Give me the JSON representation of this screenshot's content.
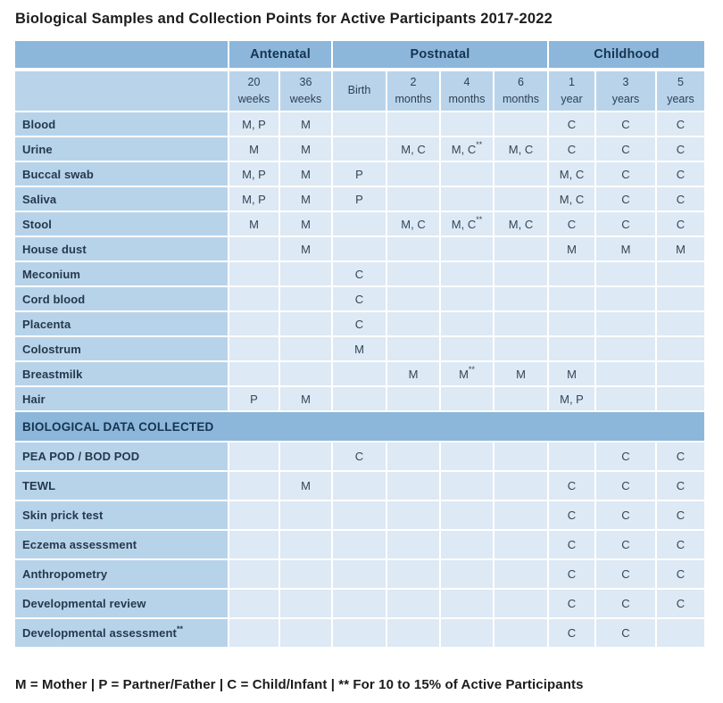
{
  "chart_data": {
    "type": "table",
    "title": "Biological Samples and Collection Points for Active Participants 2017-2022",
    "column_groups": [
      {
        "label": "",
        "span": 1
      },
      {
        "label": "Antenatal",
        "span": 2
      },
      {
        "label": "Postnatal",
        "span": 4
      },
      {
        "label": "Childhood",
        "span": 3
      }
    ],
    "columns": [
      "20\nweeks",
      "36\nweeks",
      "Birth",
      "2\nmonths",
      "4\nmonths",
      "6\nmonths",
      "1\nyear",
      "3\nyears",
      "5\nyears"
    ],
    "sections": [
      {
        "header": "",
        "rows": [
          {
            "label": "Blood",
            "cells": [
              "M, P",
              "M",
              "",
              "",
              "",
              "",
              "C",
              "C",
              "C"
            ]
          },
          {
            "label": "Urine",
            "cells": [
              "M",
              "M",
              "",
              "M, C",
              "M, C**",
              "M, C",
              "C",
              "C",
              "C"
            ]
          },
          {
            "label": "Buccal swab",
            "cells": [
              "M, P",
              "M",
              "P",
              "",
              "",
              "",
              "M, C",
              "C",
              "C"
            ]
          },
          {
            "label": "Saliva",
            "cells": [
              "M, P",
              "M",
              "P",
              "",
              "",
              "",
              "M, C",
              "C",
              "C"
            ]
          },
          {
            "label": "Stool",
            "cells": [
              "M",
              "M",
              "",
              "M, C",
              "M, C**",
              "M, C",
              "C",
              "C",
              "C"
            ]
          },
          {
            "label": "House dust",
            "cells": [
              "",
              "M",
              "",
              "",
              "",
              "",
              "M",
              "M",
              "M"
            ]
          },
          {
            "label": "Meconium",
            "cells": [
              "",
              "",
              "C",
              "",
              "",
              "",
              "",
              "",
              ""
            ]
          },
          {
            "label": "Cord blood",
            "cells": [
              "",
              "",
              "C",
              "",
              "",
              "",
              "",
              "",
              ""
            ]
          },
          {
            "label": "Placenta",
            "cells": [
              "",
              "",
              "C",
              "",
              "",
              "",
              "",
              "",
              ""
            ]
          },
          {
            "label": "Colostrum",
            "cells": [
              "",
              "",
              "M",
              "",
              "",
              "",
              "",
              "",
              ""
            ]
          },
          {
            "label": "Breastmilk",
            "cells": [
              "",
              "",
              "",
              "M",
              "M**",
              "M",
              "M",
              "",
              ""
            ]
          },
          {
            "label": "Hair",
            "cells": [
              "P",
              "M",
              "",
              "",
              "",
              "",
              "M, P",
              "",
              ""
            ]
          }
        ]
      },
      {
        "header": "BIOLOGICAL DATA COLLECTED",
        "rows": [
          {
            "label": "PEA POD / BOD POD",
            "cells": [
              "",
              "",
              "C",
              "",
              "",
              "",
              "",
              "C",
              "C"
            ]
          },
          {
            "label": "TEWL",
            "cells": [
              "",
              "M",
              "",
              "",
              "",
              "",
              "C",
              "C",
              "C"
            ]
          },
          {
            "label": "Skin prick test",
            "cells": [
              "",
              "",
              "",
              "",
              "",
              "",
              "C",
              "C",
              "C"
            ]
          },
          {
            "label": "Eczema assessment",
            "cells": [
              "",
              "",
              "",
              "",
              "",
              "",
              "C",
              "C",
              "C"
            ]
          },
          {
            "label": "Anthropometry",
            "cells": [
              "",
              "",
              "",
              "",
              "",
              "",
              "C",
              "C",
              "C"
            ]
          },
          {
            "label": "Developmental review",
            "cells": [
              "",
              "",
              "",
              "",
              "",
              "",
              "C",
              "C",
              "C"
            ]
          },
          {
            "label": "Developmental assessment**",
            "cells": [
              "",
              "",
              "",
              "",
              "",
              "",
              "C",
              "C",
              ""
            ]
          }
        ]
      }
    ],
    "footnote": "M = Mother | P = Partner/Father | C = Child/Infant | ** For 10 to 15% of Active Participants",
    "layout": {
      "legend_position": "bottom",
      "grid": "white-separators"
    },
    "colors": {
      "group_header_blue": "#8cb7db",
      "subheader_blue": "#b9d4ea",
      "row_label_blue": "#b7d3ea",
      "data_cell_blue": "#dde9f4",
      "header_text": "#16344f",
      "body_text": "#33465a",
      "title_text": "#1d1d1d"
    }
  }
}
